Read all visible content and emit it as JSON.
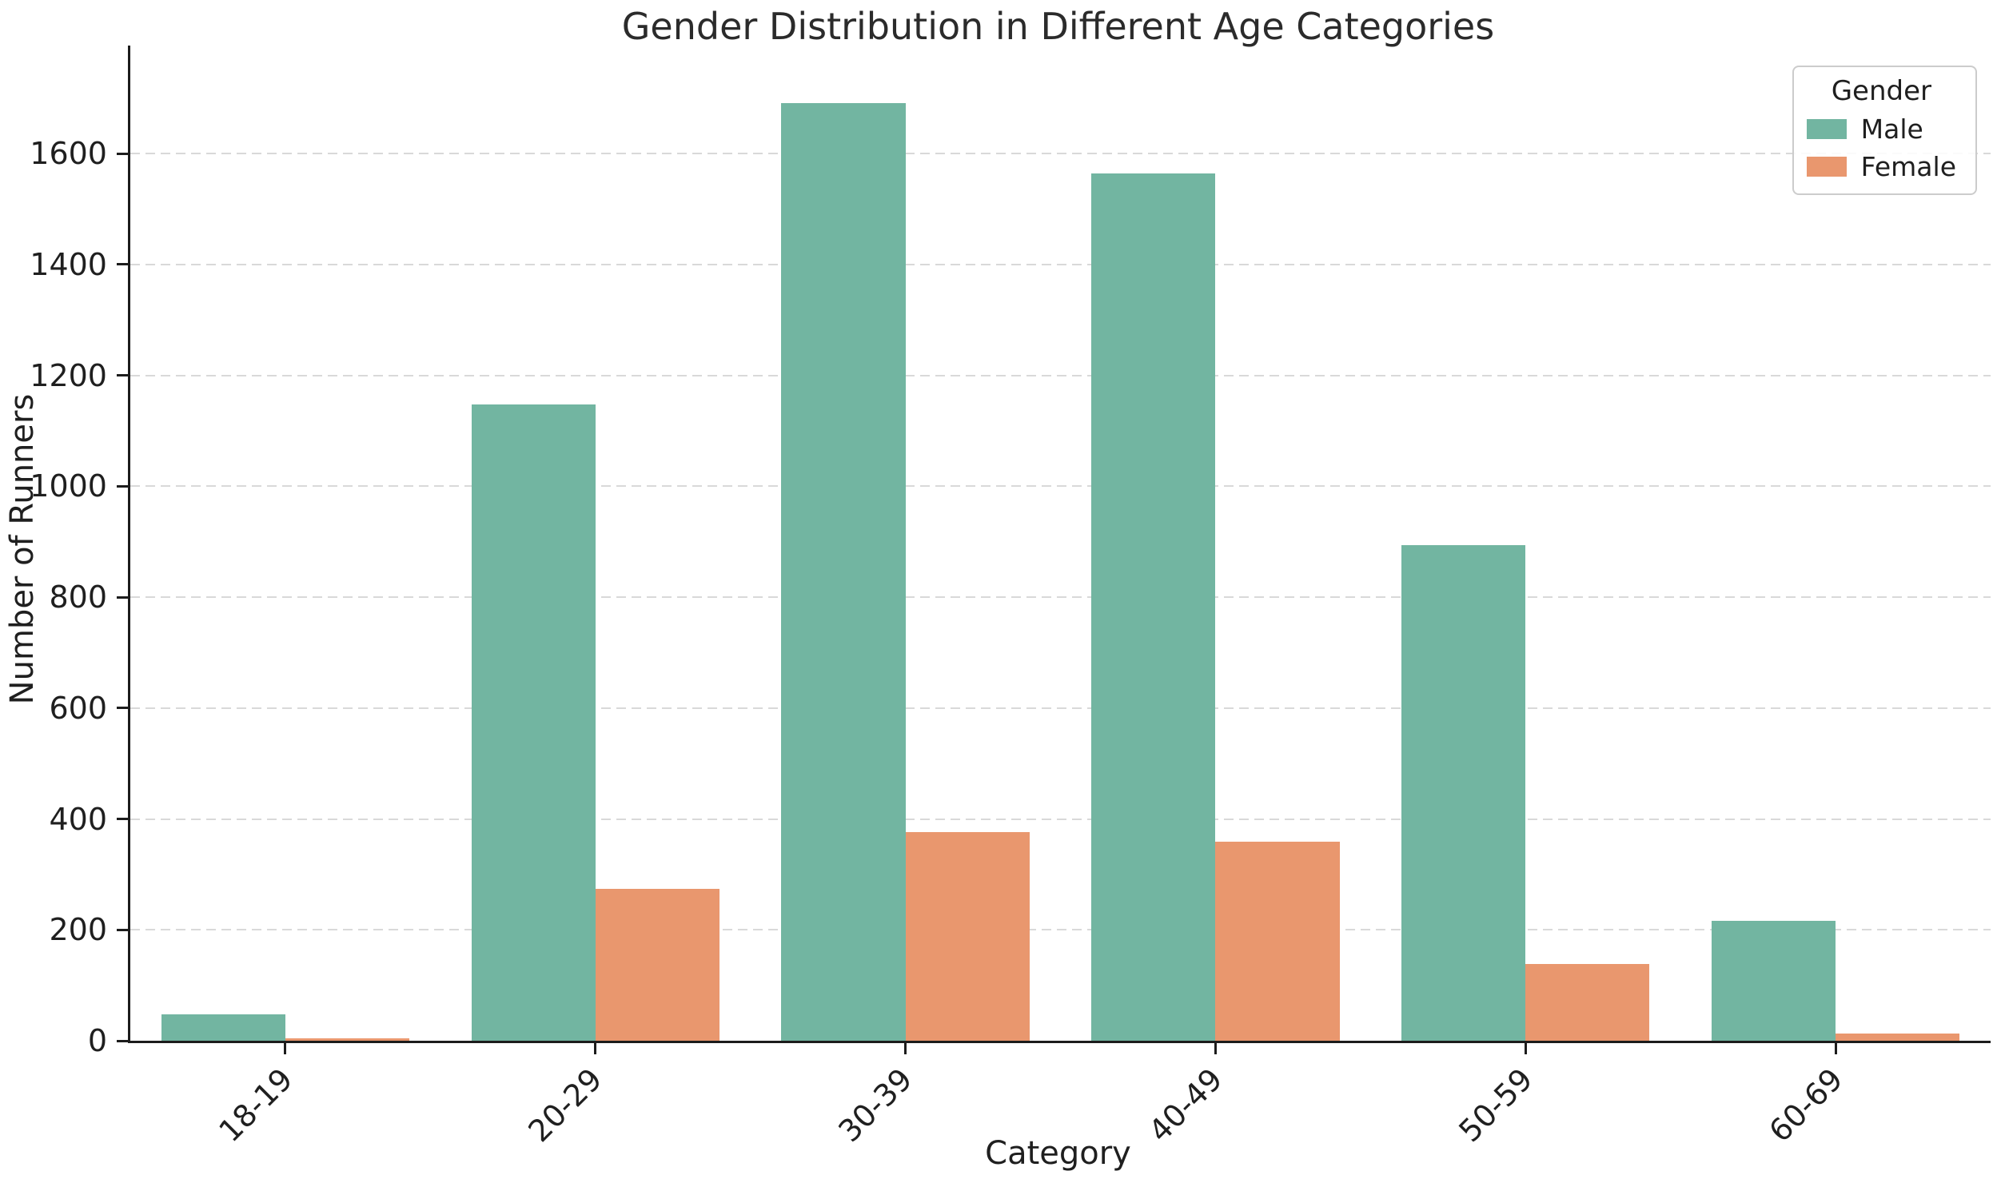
{
  "chart_data": {
    "type": "bar",
    "title": "Gender Distribution in Different Age Categories",
    "xlabel": "Category",
    "ylabel": "Number of Runners",
    "categories": [
      "18-19",
      "20-29",
      "30-39",
      "40-49",
      "50-59",
      "60-69"
    ],
    "series": [
      {
        "name": "Male",
        "color": "#72b5a1",
        "values": [
          48,
          1147,
          1691,
          1565,
          894,
          217
        ]
      },
      {
        "name": "Female",
        "color": "#e9976e",
        "values": [
          5,
          274,
          376,
          359,
          138,
          13
        ]
      }
    ],
    "legend": {
      "title": "Gender",
      "position": "upper-right"
    },
    "ylim": [
      0,
      1795
    ],
    "yticks": [
      0,
      200,
      400,
      600,
      800,
      1000,
      1200,
      1400,
      1600
    ],
    "grid": "horizontal-dashed",
    "grid_color": "#d9d9d9",
    "axis_color": "#1c1c1c",
    "bar_group_fraction": 0.8
  }
}
